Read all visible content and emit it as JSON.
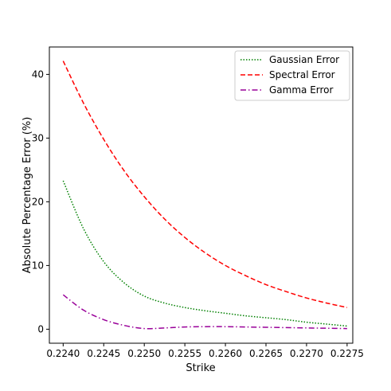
{
  "chart_data": {
    "type": "line",
    "title": "",
    "xlabel": "Strike",
    "ylabel": "Absolute Percentage Error (%)",
    "xlim": [
      0.22383,
      0.22757
    ],
    "ylim": [
      -2.2,
      44.3
    ],
    "xticks": [
      0.224,
      0.2245,
      0.225,
      0.2255,
      0.226,
      0.2265,
      0.227,
      0.2275
    ],
    "xtick_labels": [
      "0.2240",
      "0.2245",
      "0.2250",
      "0.2255",
      "0.2260",
      "0.2265",
      "0.2270",
      "0.2275"
    ],
    "yticks": [
      0,
      10,
      20,
      30,
      40
    ],
    "ytick_labels": [
      "0",
      "10",
      "20",
      "30",
      "40"
    ],
    "grid": false,
    "legend_position": "top-right",
    "series": [
      {
        "name": "Gaussian Error",
        "color": "#008000",
        "linestyle": "dotted",
        "x": [
          0.224,
          0.22425,
          0.2245,
          0.22475,
          0.225,
          0.22525,
          0.2255,
          0.22575,
          0.226,
          0.22625,
          0.2265,
          0.22675,
          0.227,
          0.22725,
          0.2275
        ],
        "y": [
          23.3,
          15.8,
          10.6,
          7.3,
          5.2,
          4.1,
          3.4,
          2.9,
          2.5,
          2.1,
          1.8,
          1.5,
          1.1,
          0.8,
          0.5
        ]
      },
      {
        "name": "Spectral Error",
        "color": "#ff0000",
        "linestyle": "dashed",
        "x": [
          0.224,
          0.22425,
          0.2245,
          0.22475,
          0.225,
          0.22525,
          0.2255,
          0.22575,
          0.226,
          0.22625,
          0.2265,
          0.22675,
          0.227,
          0.22725,
          0.2275
        ],
        "y": [
          42.1,
          35.5,
          29.8,
          24.9,
          20.8,
          17.3,
          14.4,
          12.0,
          10.0,
          8.4,
          7.0,
          5.9,
          4.9,
          4.1,
          3.4
        ]
      },
      {
        "name": "Gamma Error",
        "color": "#990099",
        "linestyle": "dashdot",
        "x": [
          0.224,
          0.22425,
          0.2245,
          0.22475,
          0.225,
          0.22525,
          0.2255,
          0.22575,
          0.226,
          0.22625,
          0.2265,
          0.22675,
          0.227,
          0.22725,
          0.2275
        ],
        "y": [
          5.4,
          3.0,
          1.5,
          0.6,
          0.1,
          0.2,
          0.35,
          0.4,
          0.4,
          0.35,
          0.3,
          0.25,
          0.2,
          0.15,
          0.1
        ]
      }
    ]
  }
}
